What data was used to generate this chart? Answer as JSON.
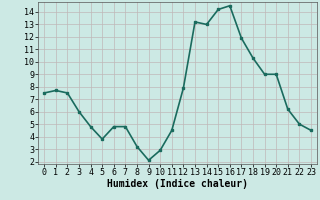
{
  "x": [
    0,
    1,
    2,
    3,
    4,
    5,
    6,
    7,
    8,
    9,
    10,
    11,
    12,
    13,
    14,
    15,
    16,
    17,
    18,
    19,
    20,
    21,
    22,
    23
  ],
  "y": [
    7.5,
    7.7,
    7.5,
    6.0,
    4.8,
    3.8,
    4.8,
    4.8,
    3.2,
    2.1,
    2.9,
    4.5,
    7.9,
    13.2,
    13.0,
    14.2,
    14.5,
    11.9,
    10.3,
    9.0,
    9.0,
    6.2,
    5.0,
    4.5
  ],
  "line_color": "#1a6b5e",
  "marker": "s",
  "marker_size": 2,
  "bg_color": "#cce9e4",
  "grid_color": "#c0b8b8",
  "xlabel": "Humidex (Indice chaleur)",
  "xlim": [
    -0.5,
    23.5
  ],
  "ylim": [
    1.8,
    14.8
  ],
  "yticks": [
    2,
    3,
    4,
    5,
    6,
    7,
    8,
    9,
    10,
    11,
    12,
    13,
    14
  ],
  "xticks": [
    0,
    1,
    2,
    3,
    4,
    5,
    6,
    7,
    8,
    9,
    10,
    11,
    12,
    13,
    14,
    15,
    16,
    17,
    18,
    19,
    20,
    21,
    22,
    23
  ],
  "xlabel_fontsize": 7,
  "tick_fontsize": 6,
  "linewidth": 1.2
}
